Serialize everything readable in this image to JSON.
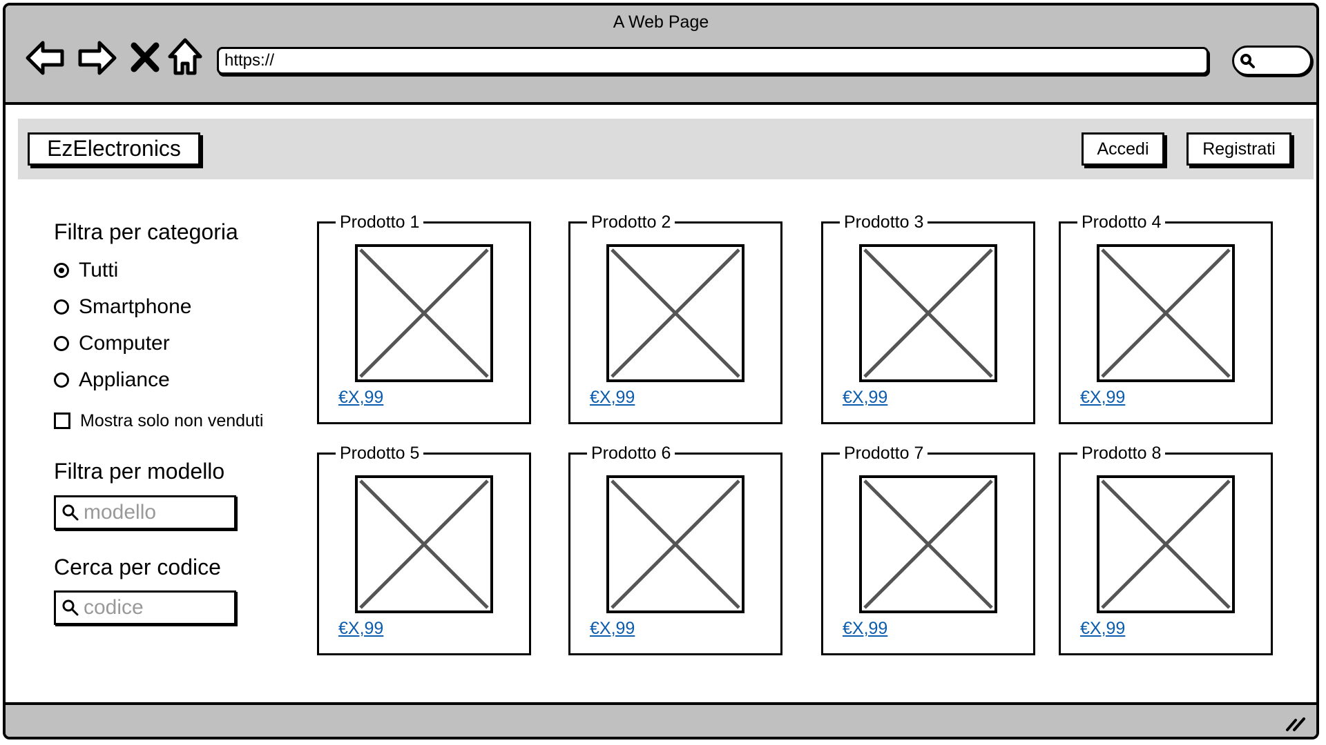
{
  "browser": {
    "title": "A Web Page",
    "url": "https://"
  },
  "header": {
    "brand": "EzElectronics",
    "login_label": "Accedi",
    "signup_label": "Registrati"
  },
  "sidebar": {
    "category_heading": "Filtra per categoria",
    "categories": [
      {
        "label": "Tutti",
        "selected": true
      },
      {
        "label": "Smartphone",
        "selected": false
      },
      {
        "label": "Computer",
        "selected": false
      },
      {
        "label": "Appliance",
        "selected": false
      }
    ],
    "unsold_only_label": "Mostra solo non venduti",
    "model_heading": "Filtra per modello",
    "model_placeholder": "modello",
    "code_heading": "Cerca per codice",
    "code_placeholder": "codice"
  },
  "products": [
    {
      "name": "Prodotto 1",
      "price": "€X,99"
    },
    {
      "name": "Prodotto 2",
      "price": "€X,99"
    },
    {
      "name": "Prodotto 3",
      "price": "€X,99"
    },
    {
      "name": "Prodotto 4",
      "price": "€X,99"
    },
    {
      "name": "Prodotto 5",
      "price": "€X,99"
    },
    {
      "name": "Prodotto 6",
      "price": "€X,99"
    },
    {
      "name": "Prodotto 7",
      "price": "€X,99"
    },
    {
      "name": "Prodotto 8",
      "price": "€X,99"
    }
  ]
}
